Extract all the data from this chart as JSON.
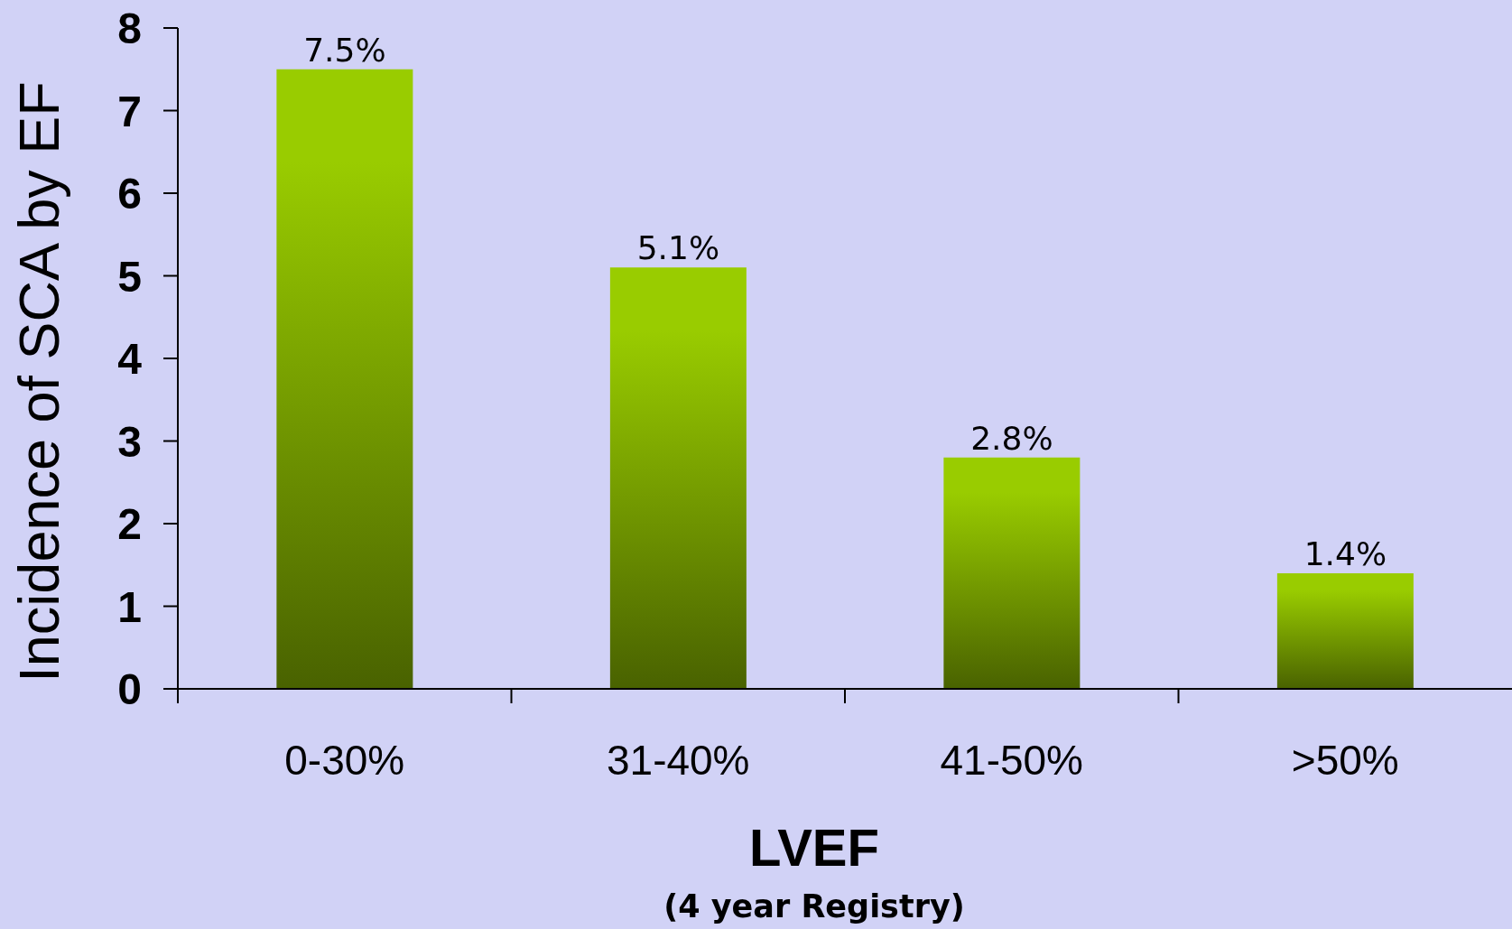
{
  "chart_data": {
    "type": "bar",
    "categories": [
      "0-30%",
      "31-40%",
      "41-50%",
      ">50%"
    ],
    "values": [
      7.5,
      5.1,
      2.8,
      1.4
    ],
    "value_labels": [
      "7.5%",
      "5.1%",
      "2.8%",
      "1.4%"
    ],
    "color": "#99cc00",
    "ylabel": "Incidence of SCA by EF",
    "xlabel": "LVEF",
    "annotations": [
      "(4 year Registry)"
    ],
    "ylim": [
      0,
      8
    ],
    "yticks": [
      0,
      1,
      2,
      3,
      4,
      5,
      6,
      7,
      8
    ]
  }
}
